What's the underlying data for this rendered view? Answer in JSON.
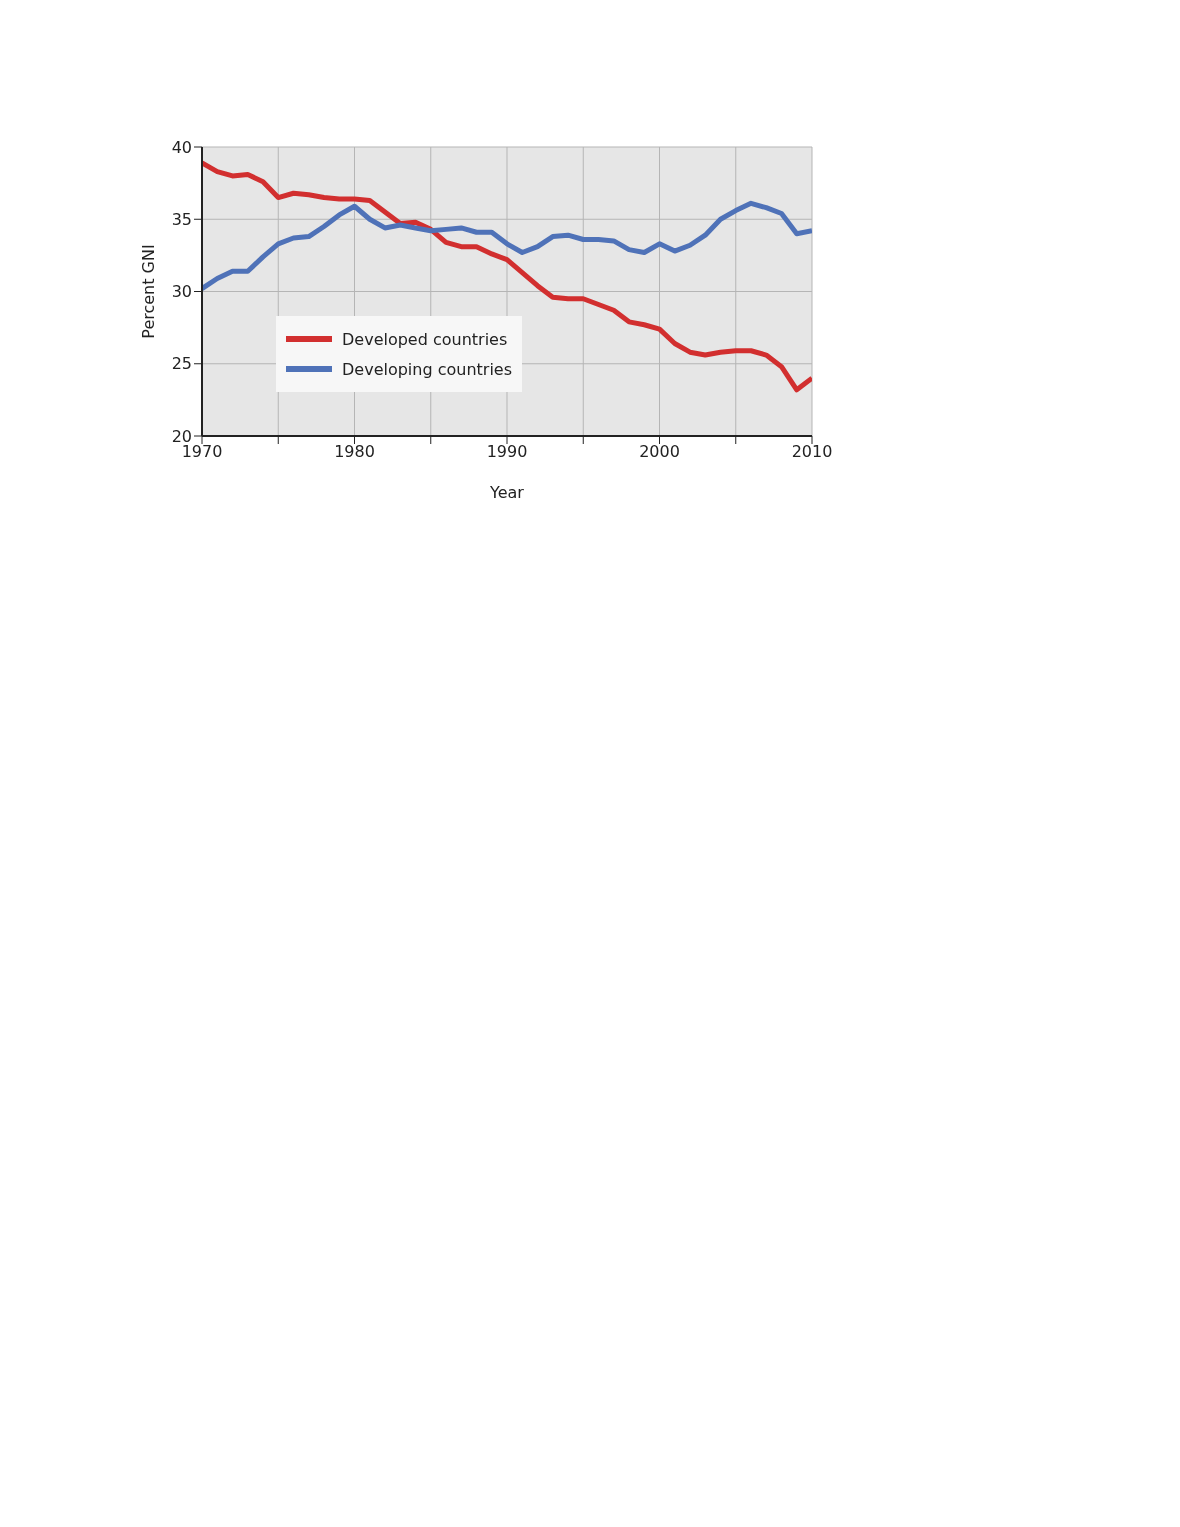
{
  "chart_data": {
    "type": "line",
    "xlabel": "Year",
    "ylabel": "Percent GNI",
    "x": [
      1970,
      1971,
      1972,
      1973,
      1974,
      1975,
      1976,
      1977,
      1978,
      1979,
      1980,
      1981,
      1982,
      1983,
      1984,
      1985,
      1986,
      1987,
      1988,
      1989,
      1990,
      1991,
      1992,
      1993,
      1994,
      1995,
      1996,
      1997,
      1998,
      1999,
      2000,
      2001,
      2002,
      2003,
      2004,
      2005,
      2006,
      2007,
      2008,
      2009,
      2010
    ],
    "series": [
      {
        "name": "Developed countries",
        "color": "#d22f2f",
        "values": [
          38.9,
          38.3,
          38.0,
          38.1,
          37.6,
          36.5,
          36.8,
          36.7,
          36.5,
          36.4,
          36.4,
          36.3,
          35.5,
          34.7,
          34.8,
          34.3,
          33.4,
          33.1,
          33.1,
          32.6,
          32.2,
          31.3,
          30.4,
          29.6,
          29.5,
          29.5,
          29.1,
          28.7,
          27.9,
          27.7,
          27.4,
          26.4,
          25.8,
          25.6,
          25.8,
          25.9,
          25.9,
          25.6,
          24.8,
          23.2,
          24.0
        ]
      },
      {
        "name": "Developing countries",
        "color": "#4f72b8",
        "values": [
          30.2,
          30.9,
          31.4,
          31.4,
          32.4,
          33.3,
          33.7,
          33.8,
          34.5,
          35.3,
          35.9,
          35.0,
          34.4,
          34.6,
          34.4,
          34.2,
          34.3,
          34.4,
          34.1,
          34.1,
          33.3,
          32.7,
          33.1,
          33.8,
          33.9,
          33.6,
          33.6,
          33.5,
          32.9,
          32.7,
          33.3,
          32.8,
          33.2,
          33.9,
          35.0,
          35.6,
          36.1,
          35.8,
          35.4,
          34.0,
          34.2
        ]
      }
    ],
    "xlim": [
      1970,
      2010
    ],
    "xticks": [
      1970,
      {
        "value": 1975,
        "label": null
      },
      1980,
      {
        "value": 1985,
        "label": null
      },
      1990,
      {
        "value": 1995,
        "label": null
      },
      2000,
      {
        "value": 2005,
        "label": null
      },
      2010
    ],
    "ylim": [
      20,
      40
    ],
    "yticks": [
      20,
      25,
      30,
      35,
      40
    ],
    "grid": true,
    "legend": "bottom left",
    "marker": "none",
    "line_style": "solid"
  }
}
